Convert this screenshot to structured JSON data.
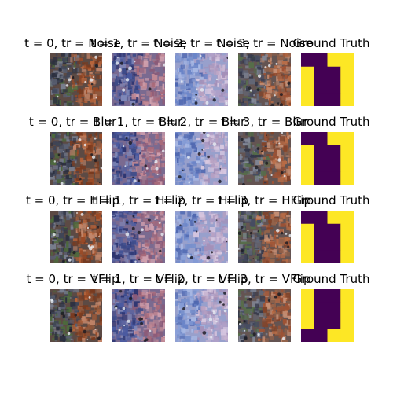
{
  "figure": {
    "rows": [
      {
        "titles": [
          "t = 0, tr = Noise",
          "t = 1, tr = Noise",
          "t = 2, tr = Noise",
          "t = 3, tr = Noise",
          "Ground Truth"
        ],
        "tint": [
          "normal",
          "mild-blue",
          "pale-blue",
          "normal-soft"
        ],
        "mask": "a"
      },
      {
        "titles": [
          "t = 0, tr = Blur",
          "t = 1, tr = Blur",
          "t = 2, tr = Blur",
          "t = 3, tr = Blur",
          "Ground Truth"
        ],
        "tint": [
          "normal",
          "mild-blue",
          "pale-blue",
          "normal-soft"
        ],
        "mask": "a"
      },
      {
        "titles": [
          "t = 0, tr = HFlip",
          "t = 1, tr = HFlip",
          "t = 2, tr = HFlip",
          "t = 3, tr = HFlip",
          "Ground Truth"
        ],
        "tint": [
          "normal",
          "mild-blue",
          "pale-blue",
          "normal-soft"
        ],
        "mask": "a"
      },
      {
        "titles": [
          "t = 0, tr = VFlip",
          "t = 1, tr = VFlip",
          "t = 2, tr = VFlip",
          "t = 3, tr = VFlip",
          "Ground Truth"
        ],
        "tint": [
          "normal",
          "mild-blue",
          "pale-blue",
          "normal-soft"
        ],
        "mask": "b"
      }
    ],
    "colors": {
      "mask_dark": "#440154",
      "mask_light": "#fde725",
      "left_half": "#4a4f63",
      "right_half": "#a0532c"
    }
  }
}
